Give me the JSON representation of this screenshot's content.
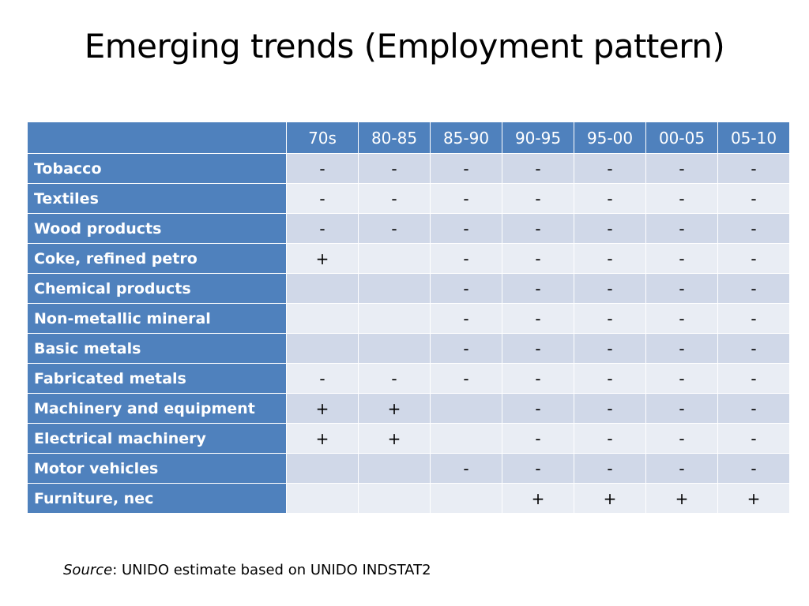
{
  "slide": {
    "title": "Emerging trends (Employment pattern)"
  },
  "table": {
    "corner": "",
    "columns": [
      "70s",
      "80-85",
      "85-90",
      "90-95",
      "95-00",
      "00-05",
      "05-10"
    ],
    "rows": [
      {
        "label": "Tobacco",
        "values": [
          "-",
          "-",
          "-",
          "-",
          "-",
          "-",
          "-"
        ]
      },
      {
        "label": "Textiles",
        "values": [
          "-",
          "-",
          "-",
          "-",
          "-",
          "-",
          "-"
        ]
      },
      {
        "label": "Wood products",
        "values": [
          "-",
          "-",
          "-",
          "-",
          "-",
          "-",
          "-"
        ]
      },
      {
        "label": "Coke, refined petro",
        "values": [
          "+",
          "",
          "-",
          "-",
          "-",
          "-",
          "-"
        ]
      },
      {
        "label": "Chemical products",
        "values": [
          "",
          "",
          "-",
          "-",
          "-",
          "-",
          "-"
        ]
      },
      {
        "label": "Non-metallic mineral",
        "values": [
          "",
          "",
          "-",
          "-",
          "-",
          "-",
          "-"
        ]
      },
      {
        "label": "Basic metals",
        "values": [
          "",
          "",
          "-",
          "-",
          "-",
          "-",
          "-"
        ]
      },
      {
        "label": "Fabricated metals",
        "values": [
          "-",
          "-",
          "-",
          "-",
          "-",
          "-",
          "-"
        ]
      },
      {
        "label": "Machinery and equipment",
        "values": [
          "+",
          "+",
          "",
          "-",
          "-",
          "-",
          "-"
        ]
      },
      {
        "label": "Electrical machinery",
        "values": [
          "+",
          "+",
          "",
          "-",
          "-",
          "-",
          "-"
        ]
      },
      {
        "label": "Motor vehicles",
        "values": [
          "",
          "",
          "-",
          "-",
          "-",
          "-",
          "-"
        ]
      },
      {
        "label": "Furniture, nec",
        "values": [
          "",
          "",
          "",
          "+",
          "+",
          "+",
          "+"
        ]
      }
    ]
  },
  "source": {
    "label": "Source",
    "text": ": UNIDO estimate based on UNIDO INDSTAT2"
  },
  "colors": {
    "header_blue": "#4f81bd",
    "band_dark": "#d0d8e8",
    "band_light": "#e9edf4"
  }
}
